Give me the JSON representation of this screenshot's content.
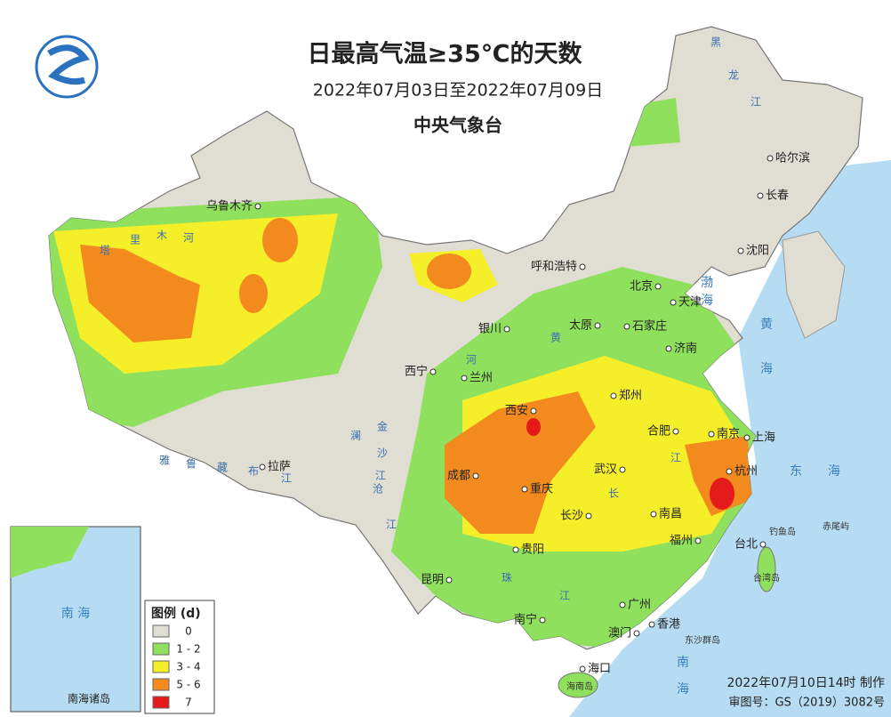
{
  "header": {
    "title": "日最高气温≥35℃的天数",
    "subtitle": "2022年07月03日至2022年07月09日",
    "agency": "中央气象台"
  },
  "cities": [
    "乌鲁木齐",
    "哈尔滨",
    "长春",
    "沈阳",
    "呼和浩特",
    "北京",
    "天津",
    "石家庄",
    "太原",
    "济南",
    "银川",
    "西宁",
    "兰州",
    "西安",
    "郑州",
    "合肥",
    "南京",
    "上海",
    "杭州",
    "成都",
    "重庆",
    "武汉",
    "长沙",
    "南昌",
    "福州",
    "台北",
    "贵阳",
    "昆明",
    "南宁",
    "广州",
    "香港",
    "澳门",
    "海口",
    "拉萨"
  ],
  "rivers": [
    "塔",
    "里",
    "木",
    "河",
    "雅",
    "鲁",
    "藏",
    "布",
    "江",
    "黄",
    "河",
    "金",
    "沙",
    "江",
    "澜",
    "沧",
    "江",
    "长",
    "江",
    "珠",
    "江",
    "黑",
    "龙",
    "江"
  ],
  "seas": [
    "渤",
    "海",
    "黄",
    "海",
    "东",
    "海",
    "南",
    "海"
  ],
  "places": [
    "钓鱼岛",
    "赤尾屿",
    "东沙群岛",
    "台湾岛",
    "海南岛"
  ],
  "legend": {
    "title": "图例 (d)",
    "items": [
      {
        "label": "0",
        "color": "#e0ddd2"
      },
      {
        "label": "1 - 2",
        "color": "#8fe05c"
      },
      {
        "label": "3 - 4",
        "color": "#f5ef2a"
      },
      {
        "label": "5 - 6",
        "color": "#f28a1e"
      },
      {
        "label": "7",
        "color": "#e51a1a"
      }
    ]
  },
  "inset": {
    "sea": "南 海",
    "label": "南海诸岛"
  },
  "footer": {
    "made": "2022年07月10日14时 制作",
    "review": "审图号：GS（2019）3082号"
  }
}
